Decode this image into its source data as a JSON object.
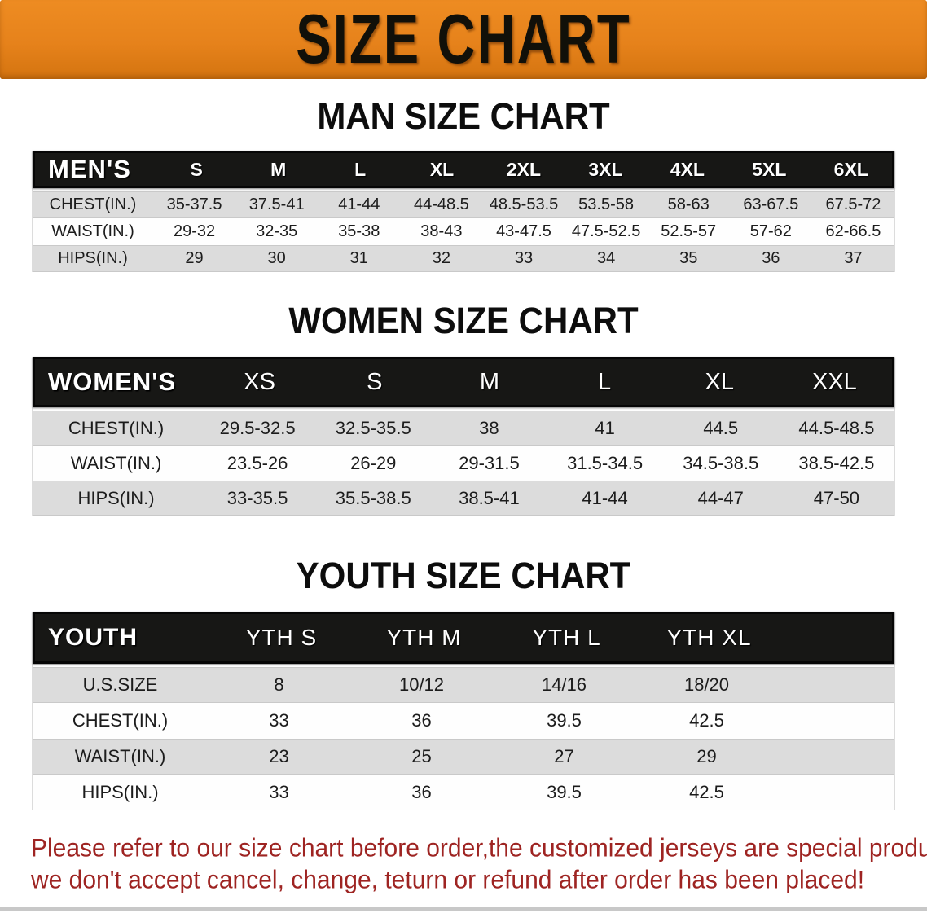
{
  "banner": {
    "title": "SIZE CHART"
  },
  "colors": {
    "banner_orange": "#E6821B",
    "header_black": "#171715",
    "stripe_gray": "#DCDCDC",
    "disclaimer_red": "#9E2422"
  },
  "sections": {
    "men": {
      "title": "MAN SIZE CHART",
      "table": {
        "header_label": "MEN'S",
        "columns": [
          "S",
          "M",
          "L",
          "XL",
          "2XL",
          "3XL",
          "4XL",
          "5XL",
          "6XL"
        ],
        "rows": [
          {
            "label": "CHEST(IN.)",
            "cells": [
              "35-37.5",
              "37.5-41",
              "41-44",
              "44-48.5",
              "48.5-53.5",
              "53.5-58",
              "58-63",
              "63-67.5",
              "67.5-72"
            ]
          },
          {
            "label": "WAIST(IN.)",
            "cells": [
              "29-32",
              "32-35",
              "35-38",
              "38-43",
              "43-47.5",
              "47.5-52.5",
              "52.5-57",
              "57-62",
              "62-66.5"
            ]
          },
          {
            "label": "HIPS(IN.)",
            "cells": [
              "29",
              "30",
              "31",
              "32",
              "33",
              "34",
              "35",
              "36",
              "37"
            ]
          }
        ]
      }
    },
    "women": {
      "title": "WOMEN SIZE CHART",
      "table": {
        "header_label": "WOMEN'S",
        "columns": [
          "XS",
          "S",
          "M",
          "L",
          "XL",
          "XXL"
        ],
        "rows": [
          {
            "label": "CHEST(IN.)",
            "cells": [
              "29.5-32.5",
              "32.5-35.5",
              "38",
              "41",
              "44.5",
              "44.5-48.5"
            ]
          },
          {
            "label": "WAIST(IN.)",
            "cells": [
              "23.5-26",
              "26-29",
              "29-31.5",
              "31.5-34.5",
              "34.5-38.5",
              "38.5-42.5"
            ]
          },
          {
            "label": "HIPS(IN.)",
            "cells": [
              "33-35.5",
              "35.5-38.5",
              "38.5-41",
              "41-44",
              "44-47",
              "47-50"
            ]
          }
        ]
      }
    },
    "youth": {
      "title": "YOUTH SIZE CHART",
      "table": {
        "header_label": "YOUTH",
        "columns": [
          "YTH S",
          "YTH M",
          "YTH L",
          "YTH XL"
        ],
        "rows": [
          {
            "label": "U.S.SIZE",
            "cells": [
              "8",
              "10/12",
              "14/16",
              "18/20"
            ]
          },
          {
            "label": "CHEST(IN.)",
            "cells": [
              "33",
              "36",
              "39.5",
              "42.5"
            ]
          },
          {
            "label": "WAIST(IN.)",
            "cells": [
              "23",
              "25",
              "27",
              "29"
            ]
          },
          {
            "label": "HIPS(IN.)",
            "cells": [
              "33",
              "36",
              "39.5",
              "42.5"
            ]
          }
        ]
      }
    }
  },
  "disclaimer": {
    "line1": "Please refer to our size chart before order,the customized jerseys are special products,",
    "line2": "we don't accept cancel, change, teturn or refund after order has been placed!"
  }
}
